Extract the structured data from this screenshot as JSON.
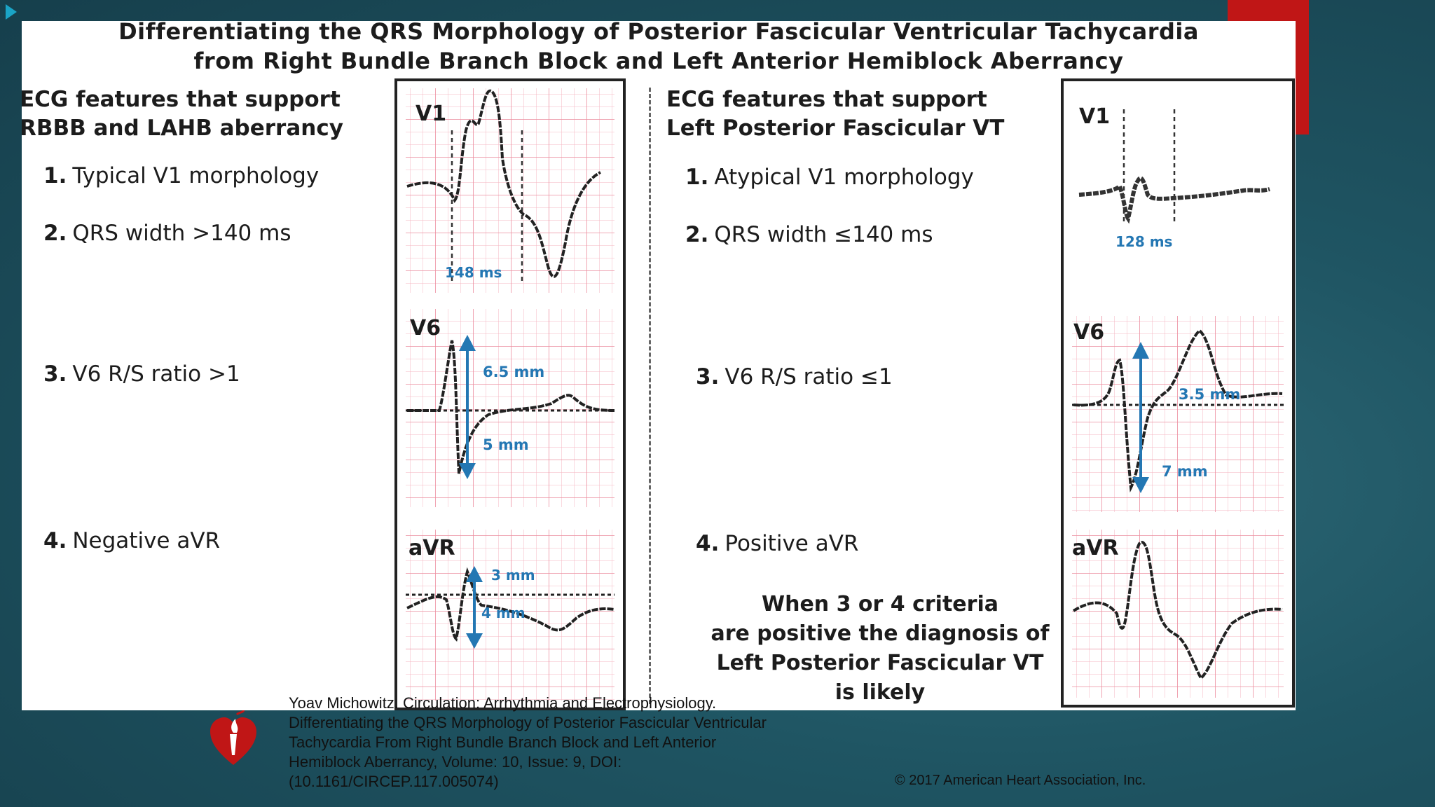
{
  "colors": {
    "accent_red": "#c01616",
    "trace_arrow_blue": "#2477b3",
    "ecg_grid": "#f1a3b0",
    "background_teal": "#1f5563"
  },
  "title": {
    "line1": "Differentiating the QRS Morphology of Posterior Fascicular Ventricular Tachycardia",
    "line2": "from Right Bundle Branch Block and Left Anterior Hemiblock Aberrancy"
  },
  "left_column": {
    "heading_line1": "ECG features that support",
    "heading_line2": "RBBB and LAHB aberrancy",
    "criteria": [
      {
        "num": "1.",
        "text": "Typical V1 morphology"
      },
      {
        "num": "2.",
        "text": "QRS width >140 ms"
      },
      {
        "num": "3.",
        "text": "V6 R/S ratio >1"
      },
      {
        "num": "4.",
        "text": "Negative aVR"
      }
    ],
    "ecg": {
      "v1_label": "V1",
      "v1_measure": "148 ms",
      "v6_label": "V6",
      "v6_r": "6.5 mm",
      "v6_s": "5 mm",
      "avr_label": "aVR",
      "avr_r": "3 mm",
      "avr_s": "4 mm"
    }
  },
  "right_column": {
    "heading_line1": "ECG features that support",
    "heading_line2": "Left Posterior Fascicular VT",
    "criteria": [
      {
        "num": "1.",
        "text": "Atypical V1 morphology"
      },
      {
        "num": "2.",
        "text": "QRS width ≤140 ms"
      },
      {
        "num": "3.",
        "text": "V6 R/S ratio ≤1"
      },
      {
        "num": "4.",
        "text": "Positive aVR"
      }
    ],
    "conclusion": [
      "When 3 or 4 criteria",
      "are positive the diagnosis of",
      "Left Posterior Fascicular VT",
      "is likely"
    ],
    "ecg": {
      "v1_label": "V1",
      "v1_measure": "128 ms",
      "v6_label": "V6",
      "v6_r": "3.5 mm",
      "v6_s": "7 mm",
      "avr_label": "aVR"
    }
  },
  "citation": [
    "Yoav Michowitz. Circulation: Arrhythmia and Electrophysiology.",
    "Differentiating the QRS Morphology of Posterior Fascicular Ventricular",
    "Tachycardia From Right Bundle Branch Block and Left Anterior",
    "Hemiblock Aberrancy, Volume: 10, Issue: 9, DOI:",
    "(10.1161/CIRCEP.117.005074)"
  ],
  "copyright": "© 2017 American Heart Association, Inc.",
  "icons": {
    "logo": "heart-torch-logo-icon",
    "nav": "play-arrow-icon"
  }
}
